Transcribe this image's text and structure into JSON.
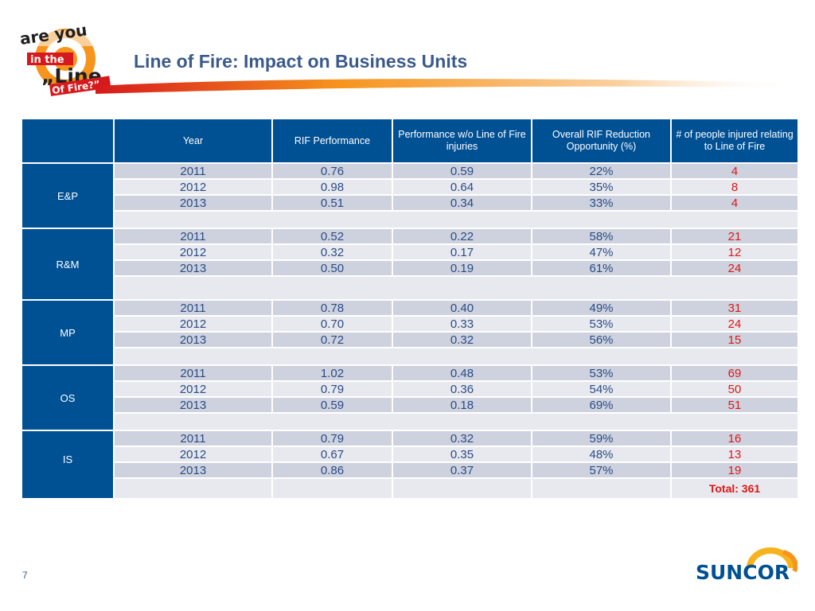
{
  "slide": {
    "title": "Line of Fire: Impact on Business Units",
    "page_number": "7",
    "logo_text": [
      "are you",
      "in the",
      "„Line",
      "Of Fire?”"
    ],
    "brand": "SUNCOR"
  },
  "table": {
    "headers": [
      "",
      "Year",
      "RIF Performance",
      "Performance w/o Line of Fire injuries",
      "Overall RIF Reduction Opportunity (%)",
      "# of people injured relating to Line of Fire"
    ],
    "units": [
      {
        "name": "E&P",
        "rows": [
          {
            "year": "2011",
            "rif": "0.76",
            "wo": "0.59",
            "reduction": "22%",
            "injured": "4"
          },
          {
            "year": "2012",
            "rif": "0.98",
            "wo": "0.64",
            "reduction": "35%",
            "injured": "8"
          },
          {
            "year": "2013",
            "rif": "0.51",
            "wo": "0.34",
            "reduction": "33%",
            "injured": "4"
          }
        ]
      },
      {
        "name": "R&M",
        "rows": [
          {
            "year": "2011",
            "rif": "0.52",
            "wo": "0.22",
            "reduction": "58%",
            "injured": "21"
          },
          {
            "year": "2012",
            "rif": "0.32",
            "wo": "0.17",
            "reduction": "47%",
            "injured": "12"
          },
          {
            "year": "2013",
            "rif": "0.50",
            "wo": "0.19",
            "reduction": "61%",
            "injured": "24"
          }
        ]
      },
      {
        "name": "MP",
        "rows": [
          {
            "year": "2011",
            "rif": "0.78",
            "wo": "0.40",
            "reduction": "49%",
            "injured": "31"
          },
          {
            "year": "2012",
            "rif": "0.70",
            "wo": "0.33",
            "reduction": "53%",
            "injured": "24"
          },
          {
            "year": "2013",
            "rif": "0.72",
            "wo": "0.32",
            "reduction": "56%",
            "injured": "15"
          }
        ]
      },
      {
        "name": "OS",
        "rows": [
          {
            "year": "2011",
            "rif": "1.02",
            "wo": "0.48",
            "reduction": "53%",
            "injured": "69"
          },
          {
            "year": "2012",
            "rif": "0.79",
            "wo": "0.36",
            "reduction": "54%",
            "injured": "50"
          },
          {
            "year": "2013",
            "rif": "0.59",
            "wo": "0.18",
            "reduction": "69%",
            "injured": "51"
          }
        ]
      },
      {
        "name": "IS",
        "rows": [
          {
            "year": "2011",
            "rif": "0.79",
            "wo": "0.32",
            "reduction": "59%",
            "injured": "16"
          },
          {
            "year": "2012",
            "rif": "0.67",
            "wo": "0.35",
            "reduction": "48%",
            "injured": "13"
          },
          {
            "year": "2013",
            "rif": "0.86",
            "wo": "0.37",
            "reduction": "57%",
            "injured": "19"
          }
        ]
      }
    ],
    "total": "Total: 361"
  },
  "colors": {
    "header_blue": "#005094",
    "title_blue": "#3a5a8c",
    "row_dark": "#cdd2de",
    "row_light": "#e7e9ee",
    "injury_red": "#e01616",
    "accent_orange": "#f7941d"
  },
  "icons": [
    "line-of-fire-logo-icon",
    "suncor-logo-icon",
    "header-swoosh-icon"
  ]
}
